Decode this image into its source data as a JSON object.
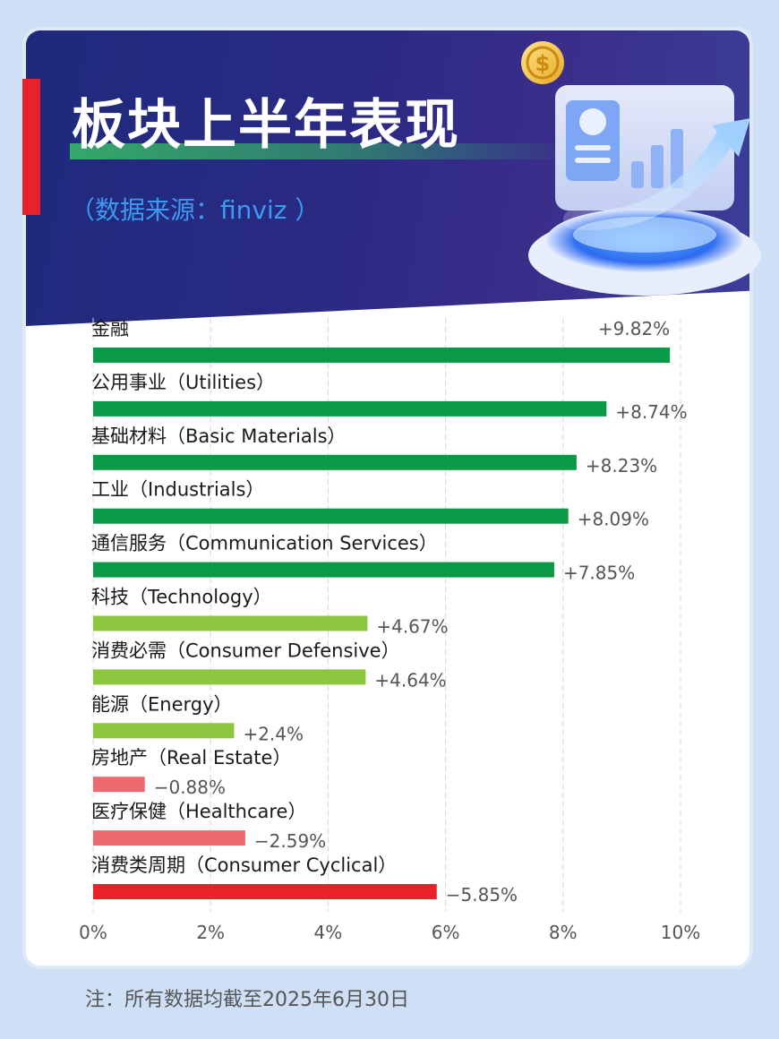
{
  "header": {
    "title": "板块上半年表现",
    "source": "（数据来源：finviz ）"
  },
  "colors": {
    "dark_green": "#0a9a47",
    "light_green": "#8cc63f",
    "light_red": "#ec6a6d",
    "red": "#e8212b"
  },
  "chart_data": {
    "type": "bar",
    "orientation": "horizontal",
    "categories": [
      "金融",
      "公用事业（Utilities）",
      "基础材料（Basic Materials）",
      "工业（Industrials）",
      "通信服务（Communication Services）",
      "科技（Technology）",
      "消费必需（Consumer Defensive）",
      "能源（Energy）",
      "房地产（Real Estate）",
      "医疗保健（Healthcare）",
      "消费类周期（Consumer Cyclical）"
    ],
    "values": [
      9.82,
      8.74,
      8.23,
      8.09,
      7.85,
      4.67,
      4.64,
      2.4,
      -0.88,
      -2.59,
      -5.85
    ],
    "value_labels": [
      "+9.82%",
      "+8.74%",
      "+8.23%",
      "+8.09%",
      "+7.85%",
      "+4.67%",
      "+4.64%",
      "+2.4%",
      "−0.88%",
      "−2.59%",
      "−5.85%"
    ],
    "bar_colors": [
      "#0a9a47",
      "#0a9a47",
      "#0a9a47",
      "#0a9a47",
      "#0a9a47",
      "#8cc63f",
      "#8cc63f",
      "#8cc63f",
      "#ec6a6d",
      "#ec6a6d",
      "#e8212b"
    ],
    "bar_length": "absolute value",
    "xlim": [
      0,
      10
    ],
    "xticks": [
      "0%",
      "2%",
      "4%",
      "6%",
      "8%",
      "10%"
    ],
    "grid": true
  },
  "footer": {
    "note": "注：所有数据均截至2025年6月30日"
  }
}
